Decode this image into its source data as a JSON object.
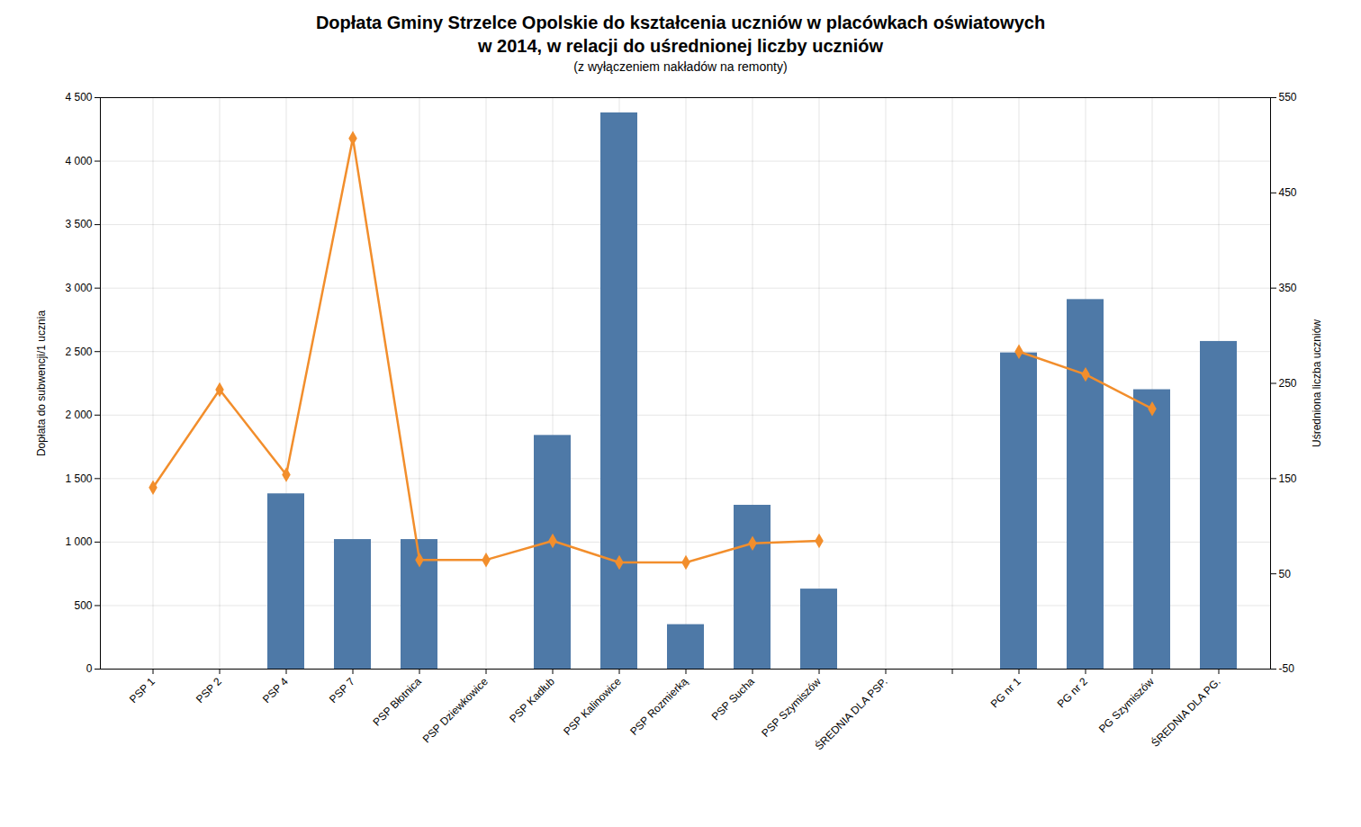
{
  "chart_data": {
    "type": "bar",
    "title": "Dopłata Gminy Strzelce Opolskie do kształcenia uczniów w placówkach oświatowych\nw 2014, w relacji do uśrednionej liczby uczniów",
    "subtitle": "(z wyłączeniem nakładów na remonty)",
    "categories": [
      "PSP 1",
      "PSP 2",
      "PSP 4",
      "PSP 7",
      "PSP Błotnica",
      "PSP Dziewkowice",
      "PSP Kadłub",
      "PSP Kalinowice",
      "PSP Rozmierką",
      "PSP Sucha",
      "PSP Szymiszów",
      "ŚREDNIA DLA PSP.",
      null,
      "PG nr 1",
      "PG nr 2",
      "PG Szymiszów",
      "ŚREDNIA DLA PG."
    ],
    "series": [
      {
        "type": "bar",
        "values": [
          null,
          null,
          1380,
          1020,
          1020,
          null,
          1840,
          4380,
          350,
          1290,
          630,
          null,
          null,
          2490,
          2910,
          2200,
          2580
        ]
      },
      {
        "type": "line",
        "marker": "diamond",
        "values": [
          1430,
          2200,
          1530,
          4180,
          860,
          860,
          1010,
          840,
          840,
          990,
          1010,
          null,
          null,
          2500,
          2320,
          2050,
          null
        ]
      }
    ],
    "ylabel": "Dopłata do subwencji/1 ucznia",
    "y2label": "Uśredniona liczba uczniów",
    "ylim": [
      0,
      4500
    ],
    "yticks": [
      0,
      500,
      {
        "value": 1000,
        "label": "1 000"
      },
      {
        "value": 1500,
        "label": "1 500"
      },
      {
        "value": 2000,
        "label": "2 000"
      },
      {
        "value": 2500,
        "label": "2 500"
      },
      {
        "value": 3000,
        "label": "3 000"
      },
      {
        "value": 3500,
        "label": "3 500"
      },
      {
        "value": 4000,
        "label": "4 000"
      },
      {
        "value": 4500,
        "label": "4 500"
      }
    ],
    "y2lim": [
      -50,
      550
    ],
    "y2ticks": [
      -50,
      50,
      150,
      250,
      350,
      450,
      550
    ],
    "grid": true
  }
}
